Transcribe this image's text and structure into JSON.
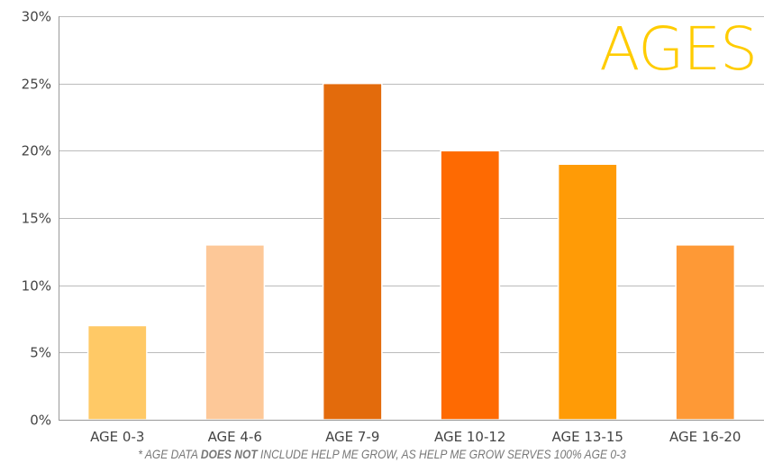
{
  "chart_data": {
    "type": "bar",
    "title": "AGES",
    "categories": [
      "AGE 0-3",
      "AGE 4-6",
      "AGE 7-9",
      "AGE 10-12",
      "AGE 13-15",
      "AGE 16-20"
    ],
    "values": [
      7,
      13,
      25,
      20,
      19,
      13
    ],
    "bar_colors": [
      "#ffc966",
      "#fdc898",
      "#e36b0c",
      "#fe6a02",
      "#ff9b06",
      "#fe9936"
    ],
    "ylim": [
      0,
      30
    ],
    "yticks": [
      0,
      5,
      10,
      15,
      20,
      25,
      30
    ],
    "ytick_labels": [
      "0%",
      "5%",
      "10%",
      "15%",
      "20%",
      "25%",
      "30%"
    ],
    "grid": true,
    "title_color": "#ffcc00"
  },
  "footnote": {
    "before": "* AGE DATA ",
    "emphasis": "DOES NOT",
    "after": " INCLUDE HELP ME GROW, AS HELP ME GROW SERVES 100% AGE 0-3"
  }
}
